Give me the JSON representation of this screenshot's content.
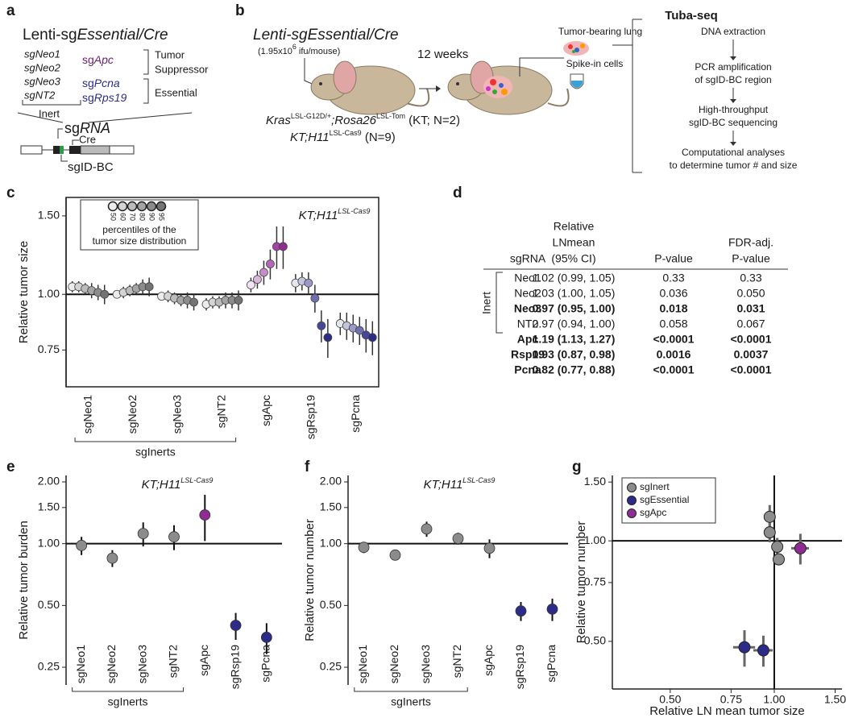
{
  "panel_a": {
    "label": "a",
    "vector": {
      "prefix": "Lenti-sg",
      "italic": "Essential/Cre"
    },
    "inert_guides": [
      "sgNeo1",
      "sgNeo2",
      "sgNeo3",
      "sgNT2"
    ],
    "inert_label": "Inert",
    "suppressor_guide": {
      "prefix": "sg",
      "italic": "Apc"
    },
    "suppressor_label": [
      "Tumor",
      "Suppressor"
    ],
    "essential_guides": [
      {
        "prefix": "sg",
        "italic": "Pcna"
      },
      {
        "prefix": "sg",
        "italic": "Rps19"
      }
    ],
    "essential_label": "Essential",
    "sgrna": {
      "prefix": "sg",
      "italic": "RNA"
    },
    "cre": "Cre",
    "barcode": "sgID-BC"
  },
  "panel_b": {
    "label": "b",
    "vector": "Lenti-sgEssential/Cre",
    "dose": {
      "text": "(1.95x10",
      "sup": "6",
      "unit": " ifu/mouse)"
    },
    "duration": "12 weeks",
    "genotype_1": {
      "gene1": "Kras",
      "sup1": "LSL-G12D/+",
      "gene2": ";Rosa26",
      "sup2": "LSL-Tom",
      "rest": " (KT; N=2)"
    },
    "genotype_2": {
      "gene": "KT;H11",
      "sup": "LSL-Cas9",
      "rest": " (N=9)"
    },
    "method": "Tuba-seq",
    "lung": "Tumor-bearing lung",
    "spike_in": "Spike-in cells",
    "steps": [
      [
        "DNA extraction"
      ],
      [
        "PCR amplification",
        "of sgID-BC region"
      ],
      [
        "High-throughput",
        "sgID-BC sequencing"
      ],
      [
        "Computational analyses",
        "to determine tumor # and size"
      ]
    ]
  },
  "panel_d": {
    "label": "d",
    "headers": [
      [
        "sgRNA"
      ],
      [
        "Relative",
        "LNmean",
        "(95% CI)"
      ],
      [
        "P-value"
      ],
      [
        "FDR-adj.",
        "P-value"
      ]
    ],
    "group": "Inert",
    "rows": [
      [
        "Neo1",
        "1.02 (0.99, 1.05)",
        "0.33",
        "0.33"
      ],
      [
        "Neo2",
        "1.03 (1.00, 1.05)",
        "0.036",
        "0.050"
      ],
      [
        "Neo3",
        "0.97 (0.95, 1.00)",
        "0.018",
        "0.031"
      ],
      [
        "NT2",
        "0.97 (0.94, 1.00)",
        "0.058",
        "0.067"
      ],
      [
        "Apc",
        "1.19 (1.13, 1.27)",
        "<0.0001",
        "<0.0001"
      ],
      [
        "Rsp19",
        "0.93 (0.87, 0.98)",
        "0.0016",
        "0.0037"
      ],
      [
        "Pcna",
        "0.82 (0.77, 0.88)",
        "<0.0001",
        "<0.0001"
      ]
    ],
    "bold": [
      false,
      false,
      true,
      false,
      true,
      true,
      true
    ]
  },
  "chart_data": [
    {
      "panel_label": "c",
      "type": "percentile",
      "title": "KT;H11",
      "title_sup": "LSL-Cas9",
      "ylabel": "Relative tumor size",
      "log_y": true,
      "ylim": [
        0.62,
        1.65
      ],
      "yticks": [
        0.75,
        {
          "value": 1,
          "label": "1.00"
        },
        {
          "value": 1.5,
          "label": "1.50"
        }
      ],
      "reference_line": 1,
      "categories": [
        "sgNeo1",
        "sgNeo2",
        "sgNeo3",
        "sgNT2",
        "sgApc",
        "sgRsp19",
        "sgPcna"
      ],
      "group_label": "sgInerts",
      "values": [
        [
          1.04,
          1.04,
          1.03,
          1.02,
          1.01,
          1.0
        ],
        [
          1.0,
          1.01,
          1.02,
          1.03,
          1.04,
          1.04
        ],
        [
          0.99,
          0.99,
          0.98,
          0.97,
          0.97,
          0.96
        ],
        [
          0.95,
          0.96,
          0.96,
          0.97,
          0.97,
          0.97
        ],
        [
          1.05,
          1.08,
          1.12,
          1.17,
          1.28,
          1.28
        ],
        [
          1.06,
          1.07,
          1.06,
          0.98,
          0.85,
          0.8
        ],
        [
          0.86,
          0.85,
          0.84,
          0.83,
          0.81,
          0.8
        ]
      ],
      "errors": [
        [
          0.03,
          0.03,
          0.03,
          0.04,
          0.04,
          0.05
        ],
        [
          0.02,
          0.03,
          0.03,
          0.03,
          0.04,
          0.05
        ],
        [
          0.02,
          0.03,
          0.03,
          0.03,
          0.04,
          0.04
        ],
        [
          0.03,
          0.03,
          0.03,
          0.04,
          0.04,
          0.05
        ],
        [
          0.04,
          0.05,
          0.07,
          0.09,
          0.14,
          0.14
        ],
        [
          0.05,
          0.05,
          0.06,
          0.07,
          0.07,
          0.08
        ],
        [
          0.05,
          0.06,
          0.06,
          0.06,
          0.07,
          0.07
        ]
      ],
      "colors": [
        [
          "#ececec",
          "#d4d4d4",
          "#bcbcbc",
          "#a4a4a4",
          "#8c8c8c",
          "#747474"
        ],
        [
          "#ececec",
          "#d4d4d4",
          "#bcbcbc",
          "#a4a4a4",
          "#8c8c8c",
          "#747474"
        ],
        [
          "#ececec",
          "#d4d4d4",
          "#bcbcbc",
          "#a4a4a4",
          "#8c8c8c",
          "#747474"
        ],
        [
          "#ececec",
          "#d4d4d4",
          "#bcbcbc",
          "#a4a4a4",
          "#8c8c8c",
          "#747474"
        ],
        [
          "#f2e4f2",
          "#dcb4dc",
          "#c88cca",
          "#b466b8",
          "#a044a6",
          "#8e2c94"
        ],
        [
          "#e6e6ee",
          "#c4c4dc",
          "#9a9ac8",
          "#7070b0",
          "#48489a",
          "#2c2c88"
        ],
        [
          "#e6e6ee",
          "#c4c4dc",
          "#9a9ac8",
          "#7070b0",
          "#48489a",
          "#2c2c88"
        ]
      ],
      "legend": {
        "percentiles": [
          50,
          60,
          70,
          80,
          90,
          95
        ],
        "colors": [
          "#ececec",
          "#d4d4d4",
          "#bcbcbc",
          "#a4a4a4",
          "#8c8c8c",
          "#747474"
        ],
        "caption": [
          "percentiles of the",
          "tumor size distribution"
        ]
      }
    },
    {
      "panel_label": "e",
      "type": "dot",
      "title": "KT;H11",
      "title_sup": "LSL-Cas9",
      "ylabel": "Relative tumor burden",
      "log_y": true,
      "ylim": [
        0.205,
        2.15
      ],
      "yticks": [
        0.25,
        {
          "value": 0.5,
          "label": "0.50"
        },
        {
          "value": 1,
          "label": "1.00"
        },
        {
          "value": 1.5,
          "label": "1.50"
        },
        {
          "value": 2,
          "label": "2.00"
        }
      ],
      "reference_line": 1,
      "categories": [
        "sgNeo1",
        "sgNeo2",
        "sgNeo3",
        "sgNT2",
        "sgApc",
        "sgRsp19",
        "sgPcna"
      ],
      "group_label": "sgInerts",
      "values": [
        0.98,
        0.85,
        1.12,
        1.08,
        1.38,
        0.4,
        0.35
      ],
      "errors": [
        0.1,
        0.08,
        0.15,
        0.15,
        0.35,
        0.06,
        0.06
      ],
      "colors": [
        "#8c8c8c",
        "#8c8c8c",
        "#8c8c8c",
        "#8c8c8c",
        "#8e2c94",
        "#2c2c88",
        "#2c2c88"
      ]
    },
    {
      "panel_label": "f",
      "type": "dot",
      "title": "KT;H11",
      "title_sup": "LSL-Cas9",
      "ylabel": "Relative tumor number",
      "log_y": true,
      "ylim": [
        0.205,
        2.15
      ],
      "yticks": [
        0.25,
        {
          "value": 0.5,
          "label": "0.50"
        },
        {
          "value": 1,
          "label": "1.00"
        },
        {
          "value": 1.5,
          "label": "1.50"
        },
        {
          "value": 2,
          "label": "2.00"
        }
      ],
      "reference_line": 1,
      "categories": [
        "sgNeo1",
        "sgNeo2",
        "sgNeo3",
        "sgNT2",
        "sgApc",
        "sgRsp19",
        "sgPcna"
      ],
      "group_label": "sgInerts",
      "values": [
        0.96,
        0.88,
        1.18,
        1.06,
        0.95,
        0.47,
        0.48
      ],
      "errors": [
        0.06,
        0.03,
        0.1,
        0.07,
        0.1,
        0.05,
        0.06
      ],
      "colors": [
        "#8c8c8c",
        "#8c8c8c",
        "#8c8c8c",
        "#8c8c8c",
        "#8c8c8c",
        "#2c2c88",
        "#2c2c88"
      ]
    },
    {
      "panel_label": "g",
      "type": "scatter",
      "xlabel": "Relative LN mean tumor size",
      "ylabel": "Relative tumor number",
      "log_x": true,
      "log_y": true,
      "xlim": [
        0.34,
        1.57
      ],
      "ylim": [
        0.36,
        1.57
      ],
      "xticks": [
        {
          "value": 0.5,
          "label": "0.50"
        },
        0.75,
        {
          "value": 1,
          "label": "1.00"
        },
        {
          "value": 1.5,
          "label": "1.50"
        }
      ],
      "yticks": [
        {
          "value": 0.5,
          "label": "0.50"
        },
        0.75,
        {
          "value": 1,
          "label": "1.00"
        },
        {
          "value": 1.5,
          "label": "1.50"
        }
      ],
      "reference_x": 1,
      "reference_y": 1,
      "legend_position": "upper left",
      "series": [
        {
          "name": "sgInert",
          "color": "#8c8c8c",
          "x": [
            1.02,
            1.03,
            0.97,
            0.97
          ],
          "y": [
            0.96,
            0.88,
            1.18,
            1.06
          ],
          "x_errors": [
            0.03,
            0.03,
            0.03,
            0.03
          ],
          "y_errors": [
            0.06,
            0.03,
            0.1,
            0.07
          ]
        },
        {
          "name": "sgEssential",
          "color": "#2c2c88",
          "x": [
            0.93,
            0.82
          ],
          "y": [
            0.47,
            0.48
          ],
          "x_errors": [
            0.06,
            0.06
          ],
          "y_errors": [
            0.05,
            0.06
          ]
        },
        {
          "name": "sgApc",
          "color": "#8e2c94",
          "x": [
            1.19
          ],
          "y": [
            0.95
          ],
          "x_errors": [
            0.07
          ],
          "y_errors": [
            0.1
          ]
        }
      ]
    }
  ]
}
